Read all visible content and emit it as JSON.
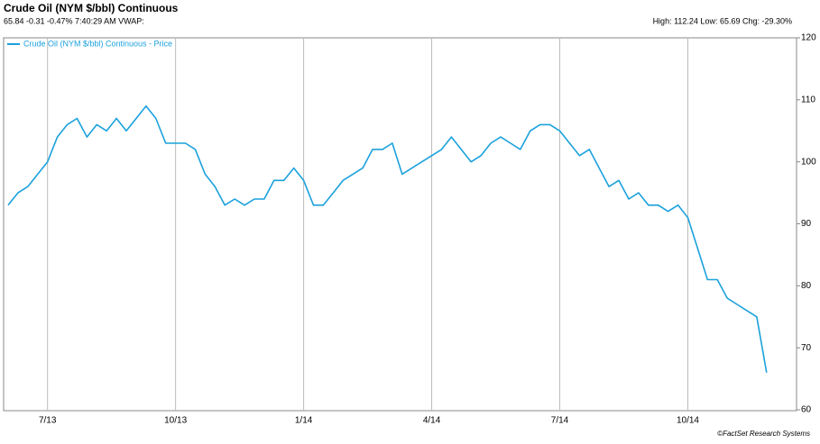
{
  "chart_data": {
    "type": "line",
    "title": "Crude Oil (NYM $/bbl) Continuous",
    "subtitle": "65.84 -0.31 -0.47% 7:40:29 AM VWAP:",
    "stats": "High: 112.24 Low: 65.69 Chg: -29.30%",
    "credit": "©FactSet Research Systems",
    "categories": [
      null,
      null,
      null,
      null,
      "7/13",
      null,
      null,
      null,
      null,
      null,
      null,
      null,
      null,
      null,
      null,
      null,
      null,
      "10/13",
      null,
      null,
      null,
      null,
      null,
      null,
      null,
      null,
      null,
      null,
      null,
      null,
      "1/14",
      null,
      null,
      null,
      null,
      null,
      null,
      null,
      null,
      null,
      null,
      null,
      null,
      "4/14",
      null,
      null,
      null,
      null,
      null,
      null,
      null,
      null,
      null,
      null,
      null,
      null,
      "7/14",
      null,
      null,
      null,
      null,
      null,
      null,
      null,
      null,
      null,
      null,
      null,
      null,
      "10/14",
      null,
      null,
      null,
      null,
      null,
      null,
      null,
      null
    ],
    "series": [
      {
        "name": "Crude Oil (NYM $/bbl) Continuous - Price",
        "color": "#1ba1dc",
        "values": [
          93,
          95,
          96,
          98,
          100,
          104,
          106,
          107,
          104,
          106,
          105,
          107,
          105,
          107,
          109,
          107,
          103,
          103,
          103,
          102,
          98,
          96,
          93,
          94,
          93,
          94,
          94,
          97,
          97,
          99,
          97,
          93,
          93,
          95,
          97,
          98,
          99,
          102,
          102,
          103,
          98,
          99,
          100,
          101,
          102,
          104,
          102,
          100,
          101,
          103,
          104,
          103,
          102,
          105,
          106,
          106,
          105,
          103,
          101,
          102,
          99,
          96,
          97,
          94,
          95,
          93,
          93,
          92,
          93,
          91,
          86,
          81,
          81,
          78,
          77,
          76,
          75,
          66
        ]
      }
    ],
    "ylim": [
      60,
      120
    ],
    "yticks": [
      60,
      70,
      80,
      90,
      100,
      110,
      120
    ],
    "grid": "x"
  }
}
